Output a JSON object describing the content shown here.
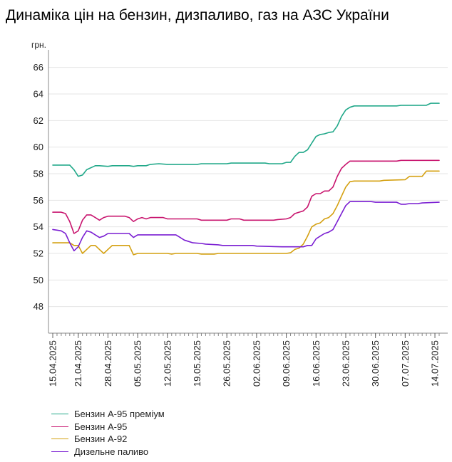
{
  "page": {
    "title": "Динаміка цін на бензин, дизпаливо, газ на АЗС України"
  },
  "chart_data": {
    "type": "line",
    "title": "Динаміка цін на бензин, дизпаливо, газ на АЗС України",
    "ylabel": "грн.",
    "xlabel": "",
    "ylim": [
      46,
      67
    ],
    "yticks": [
      48,
      50,
      52,
      54,
      56,
      58,
      60,
      62,
      64,
      66
    ],
    "x_start": "15.04.2025",
    "x_end": "15.07.2025",
    "x_tick_labels": [
      "15.04.2025",
      "21.04.2025",
      "28.04.2025",
      "05.05.2025",
      "12.05.2025",
      "19.05.2025",
      "26.05.2025",
      "02.06.2025",
      "09.06.2025",
      "16.06.2025",
      "23.06.2025",
      "30.06.2025",
      "07.07.2025",
      "14.07.2025"
    ],
    "grid": "horizontal",
    "legend_position": "bottom-left",
    "series": [
      {
        "name": "Бензин А-95 преміум",
        "color": "#20a889",
        "points": [
          [
            "15.04.2025",
            58.65
          ],
          [
            "19.04.2025",
            58.65
          ],
          [
            "20.04.2025",
            58.3
          ],
          [
            "21.04.2025",
            57.8
          ],
          [
            "22.04.2025",
            57.9
          ],
          [
            "23.04.2025",
            58.3
          ],
          [
            "25.04.2025",
            58.6
          ],
          [
            "26.04.2025",
            58.6
          ],
          [
            "28.04.2025",
            58.55
          ],
          [
            "29.04.2025",
            58.6
          ],
          [
            "03.05.2025",
            58.6
          ],
          [
            "04.05.2025",
            58.55
          ],
          [
            "05.05.2025",
            58.6
          ],
          [
            "07.05.2025",
            58.6
          ],
          [
            "08.05.2025",
            58.7
          ],
          [
            "10.05.2025",
            58.75
          ],
          [
            "12.05.2025",
            58.7
          ],
          [
            "19.05.2025",
            58.7
          ],
          [
            "20.05.2025",
            58.75
          ],
          [
            "26.05.2025",
            58.75
          ],
          [
            "27.05.2025",
            58.8
          ],
          [
            "04.06.2025",
            58.8
          ],
          [
            "05.06.2025",
            58.75
          ],
          [
            "08.06.2025",
            58.75
          ],
          [
            "09.06.2025",
            58.85
          ],
          [
            "10.06.2025",
            58.85
          ],
          [
            "11.06.2025",
            59.3
          ],
          [
            "12.06.2025",
            59.6
          ],
          [
            "13.06.2025",
            59.6
          ],
          [
            "14.06.2025",
            59.8
          ],
          [
            "15.06.2025",
            60.3
          ],
          [
            "16.06.2025",
            60.8
          ],
          [
            "17.06.2025",
            60.95
          ],
          [
            "18.06.2025",
            61.0
          ],
          [
            "19.06.2025",
            61.1
          ],
          [
            "20.06.2025",
            61.15
          ],
          [
            "21.06.2025",
            61.6
          ],
          [
            "22.06.2025",
            62.3
          ],
          [
            "23.06.2025",
            62.8
          ],
          [
            "24.06.2025",
            63.0
          ],
          [
            "25.06.2025",
            63.1
          ],
          [
            "05.07.2025",
            63.1
          ],
          [
            "06.07.2025",
            63.15
          ],
          [
            "12.07.2025",
            63.15
          ],
          [
            "13.07.2025",
            63.3
          ],
          [
            "15.07.2025",
            63.3
          ]
        ]
      },
      {
        "name": "Бензин А-95",
        "color": "#c8146e",
        "points": [
          [
            "15.04.2025",
            55.1
          ],
          [
            "17.04.2025",
            55.1
          ],
          [
            "18.04.2025",
            55.0
          ],
          [
            "19.04.2025",
            54.4
          ],
          [
            "20.04.2025",
            53.5
          ],
          [
            "21.04.2025",
            53.7
          ],
          [
            "22.04.2025",
            54.5
          ],
          [
            "23.04.2025",
            54.9
          ],
          [
            "24.04.2025",
            54.9
          ],
          [
            "25.04.2025",
            54.7
          ],
          [
            "26.04.2025",
            54.5
          ],
          [
            "27.04.2025",
            54.7
          ],
          [
            "28.04.2025",
            54.8
          ],
          [
            "02.05.2025",
            54.8
          ],
          [
            "03.05.2025",
            54.7
          ],
          [
            "04.05.2025",
            54.4
          ],
          [
            "05.05.2025",
            54.6
          ],
          [
            "06.05.2025",
            54.7
          ],
          [
            "07.05.2025",
            54.6
          ],
          [
            "08.05.2025",
            54.7
          ],
          [
            "11.05.2025",
            54.7
          ],
          [
            "12.05.2025",
            54.6
          ],
          [
            "19.05.2025",
            54.6
          ],
          [
            "20.05.2025",
            54.5
          ],
          [
            "26.05.2025",
            54.5
          ],
          [
            "27.05.2025",
            54.6
          ],
          [
            "29.05.2025",
            54.6
          ],
          [
            "30.05.2025",
            54.5
          ],
          [
            "06.06.2025",
            54.5
          ],
          [
            "07.06.2025",
            54.55
          ],
          [
            "09.06.2025",
            54.6
          ],
          [
            "10.06.2025",
            54.7
          ],
          [
            "11.06.2025",
            55.0
          ],
          [
            "12.06.2025",
            55.1
          ],
          [
            "13.06.2025",
            55.2
          ],
          [
            "14.06.2025",
            55.5
          ],
          [
            "15.06.2025",
            56.3
          ],
          [
            "16.06.2025",
            56.5
          ],
          [
            "17.06.2025",
            56.5
          ],
          [
            "18.06.2025",
            56.7
          ],
          [
            "19.06.2025",
            56.7
          ],
          [
            "20.06.2025",
            57.0
          ],
          [
            "21.06.2025",
            57.8
          ],
          [
            "22.06.2025",
            58.4
          ],
          [
            "23.06.2025",
            58.7
          ],
          [
            "24.06.2025",
            58.95
          ],
          [
            "05.07.2025",
            58.95
          ],
          [
            "06.07.2025",
            59.0
          ],
          [
            "15.07.2025",
            59.0
          ]
        ]
      },
      {
        "name": "Бензин А-92",
        "color": "#d4a010",
        "points": [
          [
            "15.04.2025",
            52.8
          ],
          [
            "19.04.2025",
            52.8
          ],
          [
            "20.04.2025",
            52.6
          ],
          [
            "21.04.2025",
            52.6
          ],
          [
            "22.04.2025",
            52.0
          ],
          [
            "23.04.2025",
            52.3
          ],
          [
            "24.04.2025",
            52.6
          ],
          [
            "25.04.2025",
            52.6
          ],
          [
            "26.04.2025",
            52.3
          ],
          [
            "27.04.2025",
            52.0
          ],
          [
            "28.04.2025",
            52.3
          ],
          [
            "29.04.2025",
            52.6
          ],
          [
            "03.05.2025",
            52.6
          ],
          [
            "04.05.2025",
            51.9
          ],
          [
            "05.05.2025",
            52.0
          ],
          [
            "12.05.2025",
            52.0
          ],
          [
            "13.05.2025",
            51.95
          ],
          [
            "14.05.2025",
            52.0
          ],
          [
            "19.05.2025",
            52.0
          ],
          [
            "20.05.2025",
            51.95
          ],
          [
            "23.05.2025",
            51.95
          ],
          [
            "24.05.2025",
            52.0
          ],
          [
            "09.06.2025",
            52.0
          ],
          [
            "10.06.2025",
            52.05
          ],
          [
            "11.06.2025",
            52.3
          ],
          [
            "12.06.2025",
            52.4
          ],
          [
            "13.06.2025",
            52.7
          ],
          [
            "14.06.2025",
            53.3
          ],
          [
            "15.06.2025",
            54.0
          ],
          [
            "16.06.2025",
            54.2
          ],
          [
            "17.06.2025",
            54.3
          ],
          [
            "18.06.2025",
            54.6
          ],
          [
            "19.06.2025",
            54.7
          ],
          [
            "20.06.2025",
            55.0
          ],
          [
            "21.06.2025",
            55.6
          ],
          [
            "22.06.2025",
            56.3
          ],
          [
            "23.06.2025",
            57.0
          ],
          [
            "24.06.2025",
            57.4
          ],
          [
            "25.06.2025",
            57.45
          ],
          [
            "01.07.2025",
            57.45
          ],
          [
            "02.07.2025",
            57.5
          ],
          [
            "07.07.2025",
            57.55
          ],
          [
            "08.07.2025",
            57.8
          ],
          [
            "11.07.2025",
            57.8
          ],
          [
            "12.07.2025",
            58.2
          ],
          [
            "15.07.2025",
            58.2
          ]
        ]
      },
      {
        "name": "Дизельне паливо",
        "color": "#7a1ed2",
        "points": [
          [
            "15.04.2025",
            53.8
          ],
          [
            "16.04.2025",
            53.75
          ],
          [
            "17.04.2025",
            53.7
          ],
          [
            "18.04.2025",
            53.5
          ],
          [
            "19.04.2025",
            52.8
          ],
          [
            "20.04.2025",
            52.2
          ],
          [
            "21.04.2025",
            52.5
          ],
          [
            "22.04.2025",
            53.2
          ],
          [
            "23.04.2025",
            53.7
          ],
          [
            "24.04.2025",
            53.6
          ],
          [
            "25.04.2025",
            53.4
          ],
          [
            "26.04.2025",
            53.2
          ],
          [
            "27.04.2025",
            53.3
          ],
          [
            "28.04.2025",
            53.5
          ],
          [
            "03.05.2025",
            53.5
          ],
          [
            "04.05.2025",
            53.2
          ],
          [
            "05.05.2025",
            53.4
          ],
          [
            "14.05.2025",
            53.4
          ],
          [
            "15.05.2025",
            53.2
          ],
          [
            "16.05.2025",
            53.0
          ],
          [
            "17.05.2025",
            52.9
          ],
          [
            "18.05.2025",
            52.8
          ],
          [
            "20.05.2025",
            52.75
          ],
          [
            "21.05.2025",
            52.7
          ],
          [
            "24.05.2025",
            52.65
          ],
          [
            "25.05.2025",
            52.6
          ],
          [
            "01.06.2025",
            52.6
          ],
          [
            "02.06.2025",
            52.55
          ],
          [
            "08.06.2025",
            52.5
          ],
          [
            "13.06.2025",
            52.5
          ],
          [
            "14.06.2025",
            52.6
          ],
          [
            "15.06.2025",
            52.6
          ],
          [
            "16.06.2025",
            53.1
          ],
          [
            "17.06.2025",
            53.3
          ],
          [
            "18.06.2025",
            53.5
          ],
          [
            "19.06.2025",
            53.6
          ],
          [
            "20.06.2025",
            53.8
          ],
          [
            "21.06.2025",
            54.4
          ],
          [
            "22.06.2025",
            55.0
          ],
          [
            "23.06.2025",
            55.6
          ],
          [
            "24.06.2025",
            55.9
          ],
          [
            "29.06.2025",
            55.9
          ],
          [
            "30.06.2025",
            55.85
          ],
          [
            "05.07.2025",
            55.85
          ],
          [
            "06.07.2025",
            55.7
          ],
          [
            "07.07.2025",
            55.7
          ],
          [
            "08.07.2025",
            55.75
          ],
          [
            "10.07.2025",
            55.75
          ],
          [
            "11.07.2025",
            55.8
          ],
          [
            "15.07.2025",
            55.85
          ]
        ]
      }
    ]
  }
}
